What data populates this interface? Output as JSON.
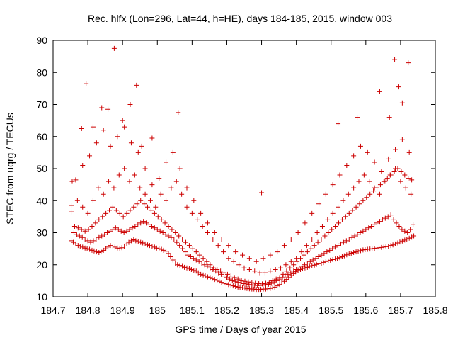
{
  "chart_data": {
    "type": "scatter",
    "title": "Rec. hlfx (Lon=296, Lat=44, h=HE), days 184-185, 2015, window 003",
    "xlabel": "GPS time / Days of year 2015",
    "ylabel": "STEC from uqrg / TECUs",
    "xlim": [
      184.7,
      185.8
    ],
    "ylim": [
      10,
      90
    ],
    "xticks": [
      184.7,
      184.8,
      184.9,
      185.0,
      185.1,
      185.2,
      185.3,
      185.4,
      185.5,
      185.6,
      185.7,
      185.8
    ],
    "xtick_labels": [
      "184.7",
      "184.8",
      "184.9",
      "185",
      "185.1",
      "185.2",
      "185.3",
      "185.4",
      "185.5",
      "185.6",
      "185.7",
      "185.8"
    ],
    "yticks": [
      10,
      20,
      30,
      40,
      50,
      60,
      70,
      80,
      90
    ],
    "ytick_labels": [
      "10",
      "20",
      "30",
      "40",
      "50",
      "60",
      "70",
      "80",
      "90"
    ],
    "grid": false,
    "marker": "+",
    "color": "#cc0000",
    "series": [
      {
        "x": [
          184.752,
          184.758,
          184.765,
          184.772,
          184.778,
          184.785,
          184.792,
          184.798,
          184.805,
          184.812,
          184.818,
          184.825,
          184.832,
          184.838,
          184.845,
          184.852,
          184.858,
          184.865,
          184.872,
          184.878,
          184.885,
          184.892,
          184.898,
          184.905,
          184.912,
          184.918,
          184.925,
          184.932,
          184.938,
          184.945,
          184.952,
          184.958,
          184.965,
          184.972,
          184.978,
          184.985,
          184.992,
          184.998,
          185.005,
          185.012,
          185.018,
          185.025,
          185.032,
          185.038,
          185.045,
          185.052,
          185.058,
          185.065,
          185.072,
          185.078,
          185.085,
          185.092,
          185.098,
          185.105,
          185.112,
          185.118,
          185.125,
          185.132,
          185.138,
          185.145,
          185.152,
          185.158,
          185.165,
          185.172,
          185.178,
          185.185,
          185.192,
          185.198,
          185.205,
          185.212,
          185.218,
          185.225,
          185.232,
          185.238,
          185.245,
          185.252,
          185.258,
          185.265,
          185.272,
          185.278,
          185.285,
          185.292,
          185.298,
          185.305,
          185.312,
          185.318,
          185.325,
          185.332,
          185.338,
          185.345,
          185.352,
          185.358,
          185.365,
          185.372,
          185.378,
          185.385,
          185.392,
          185.398,
          185.405,
          185.412,
          185.418,
          185.425,
          185.432,
          185.438,
          185.445,
          185.452,
          185.458,
          185.465,
          185.472,
          185.478,
          185.485,
          185.492,
          185.498,
          185.505,
          185.512,
          185.518,
          185.525,
          185.532,
          185.538,
          185.545,
          185.552,
          185.558,
          185.565,
          185.572,
          185.578,
          185.585,
          185.592,
          185.598,
          185.605,
          185.612,
          185.618,
          185.625,
          185.632,
          185.638,
          185.645,
          185.652,
          185.658,
          185.665,
          185.672,
          185.678,
          185.685,
          185.692,
          185.698,
          185.705,
          185.712,
          185.718,
          185.725,
          185.732,
          185.738
        ],
        "y": [
          27.5,
          27,
          26.5,
          26,
          25.8,
          25.5,
          25.2,
          25,
          24.8,
          24.5,
          24.3,
          24,
          23.8,
          24,
          24.5,
          25,
          25.5,
          26,
          25.8,
          25.5,
          25.2,
          25,
          25.3,
          25.8,
          26.5,
          27,
          27.5,
          27.8,
          27.5,
          27.2,
          27,
          26.8,
          26.5,
          26.2,
          26,
          25.8,
          25.5,
          25.2,
          25,
          24.8,
          24.5,
          24.2,
          23.5,
          22.5,
          21.5,
          20.5,
          20,
          19.8,
          19.5,
          19.2,
          19,
          18.8,
          18.5,
          18.2,
          18,
          17.5,
          17,
          16.8,
          16.5,
          16.2,
          16,
          15.7,
          15.4,
          15.1,
          14.8,
          14.5,
          14.2,
          14,
          13.8,
          13.6,
          13.4,
          13.2,
          13,
          12.9,
          12.8,
          12.7,
          12.6,
          12.5,
          12.4,
          12.4,
          12.3,
          12.3,
          12.3,
          12.4,
          12.4,
          12.5,
          12.6,
          12.8,
          13,
          13.4,
          13.8,
          14.3,
          14.8,
          15.4,
          16,
          16.6,
          17.2,
          17.8,
          18.2,
          18.5,
          18.8,
          19,
          19.2,
          19.5,
          19.7,
          19.9,
          20.1,
          20.3,
          20.5,
          20.7,
          21,
          21.2,
          21.4,
          21.6,
          21.8,
          22,
          22.2,
          22.5,
          22.8,
          23.1,
          23.4,
          23.6,
          23.8,
          24,
          24.2,
          24.4,
          24.6,
          24.7,
          24.8,
          24.9,
          25,
          25.1,
          25.2,
          25.3,
          25.4,
          25.5,
          25.6,
          25.8,
          26,
          26.2,
          26.5,
          26.8,
          27.1,
          27.4,
          27.7,
          28,
          28.3,
          28.6,
          29
        ]
      },
      {
        "x": [
          184.752,
          184.76,
          184.768,
          184.776,
          184.784,
          184.792,
          184.8,
          184.808,
          184.816,
          184.824,
          184.832,
          184.84,
          184.848,
          184.856,
          184.864,
          184.872,
          184.88,
          184.888,
          184.896,
          184.904,
          184.912,
          184.92,
          184.928,
          184.936,
          184.944,
          184.952,
          184.96,
          184.968,
          184.976,
          184.984,
          184.992,
          185.0,
          185.008,
          185.016,
          185.024,
          185.032,
          185.04,
          185.048,
          185.056,
          185.064,
          185.072,
          185.08,
          185.088,
          185.096,
          185.104,
          185.112,
          185.12,
          185.128,
          185.136,
          185.144,
          185.152,
          185.16,
          185.168,
          185.176,
          185.184,
          185.192,
          185.2,
          185.208,
          185.216,
          185.224,
          185.232,
          185.24,
          185.248,
          185.256,
          185.264,
          185.272,
          185.28,
          185.288,
          185.296,
          185.304,
          185.312,
          185.32,
          185.328,
          185.336,
          185.344,
          185.352,
          185.36,
          185.368,
          185.376,
          185.384,
          185.392,
          185.4,
          185.408,
          185.416,
          185.424,
          185.432,
          185.44,
          185.448,
          185.456,
          185.464,
          185.472,
          185.48,
          185.488,
          185.496,
          185.504,
          185.512,
          185.52,
          185.528,
          185.536,
          185.544,
          185.552,
          185.56,
          185.568,
          185.576,
          185.584,
          185.592,
          185.6,
          185.608,
          185.616,
          185.624,
          185.632,
          185.64,
          185.648,
          185.656,
          185.664,
          185.672,
          185.68,
          185.688,
          185.696,
          185.704,
          185.712,
          185.72,
          185.728,
          185.736
        ],
        "y": [
          36.5,
          30,
          29.5,
          29,
          28.5,
          28,
          27.5,
          27,
          27.5,
          28,
          28.5,
          29,
          29.5,
          30,
          30.5,
          31,
          31.5,
          31,
          30.5,
          30,
          30.5,
          31,
          31.5,
          32,
          32.5,
          33,
          33.5,
          33,
          32.5,
          32,
          31.5,
          31,
          30.5,
          30,
          29.5,
          29,
          28.5,
          28,
          27,
          26,
          25,
          24,
          23,
          22.5,
          22,
          21.5,
          21,
          20.5,
          20,
          19.5,
          19,
          18.5,
          18,
          17.5,
          17,
          16.5,
          16,
          15.5,
          15,
          14.8,
          14.5,
          14.3,
          14.1,
          14,
          13.8,
          13.7,
          13.6,
          13.5,
          13.5,
          13.6,
          13.7,
          13.9,
          14.2,
          14.6,
          15,
          15.5,
          16,
          16.5,
          17,
          17.5,
          18,
          18.5,
          19,
          19.5,
          20,
          20.5,
          21,
          21.5,
          22,
          22.5,
          23,
          23.5,
          24,
          24.5,
          25,
          25.5,
          26,
          26.5,
          27,
          27.5,
          28,
          28.5,
          29,
          29.5,
          30,
          30.5,
          31,
          31.5,
          32,
          32.5,
          33,
          33.5,
          34,
          34.5,
          35,
          35.5,
          34,
          33,
          32,
          31,
          30.5,
          30,
          31,
          32.5
        ]
      },
      {
        "x": [
          184.752,
          184.762,
          184.772,
          184.782,
          184.792,
          184.802,
          184.812,
          184.822,
          184.832,
          184.842,
          184.852,
          184.862,
          184.872,
          184.882,
          184.892,
          184.902,
          184.912,
          184.922,
          184.932,
          184.942,
          184.952,
          184.962,
          184.972,
          184.982,
          184.992,
          185.002,
          185.012,
          185.022,
          185.032,
          185.042,
          185.052,
          185.062,
          185.072,
          185.082,
          185.092,
          185.102,
          185.112,
          185.122,
          185.132,
          185.142,
          185.152,
          185.162,
          185.172,
          185.182,
          185.192,
          185.202,
          185.212,
          185.222,
          185.232,
          185.242,
          185.252,
          185.262,
          185.272,
          185.282,
          185.292,
          185.302,
          185.312,
          185.322,
          185.332,
          185.342,
          185.352,
          185.362,
          185.372,
          185.382,
          185.392,
          185.402,
          185.412,
          185.422,
          185.432,
          185.442,
          185.452,
          185.462,
          185.472,
          185.482,
          185.492,
          185.502,
          185.512,
          185.522,
          185.532,
          185.542,
          185.552,
          185.562,
          185.572,
          185.582,
          185.592,
          185.602,
          185.612,
          185.622,
          185.632,
          185.642,
          185.652,
          185.662,
          185.672,
          185.682,
          185.692,
          185.702,
          185.712,
          185.722,
          185.732
        ],
        "y": [
          38.5,
          32,
          31.5,
          31,
          30.5,
          31,
          32,
          33,
          34,
          35,
          36,
          37,
          38,
          37,
          36,
          35,
          36,
          37,
          38,
          39,
          40,
          39,
          38,
          37,
          36,
          35,
          34,
          33,
          32,
          31,
          30,
          29,
          28,
          27,
          26,
          25,
          24,
          23,
          22,
          21,
          20,
          19,
          18.5,
          18,
          17.5,
          17,
          16.5,
          16,
          15.5,
          15,
          14.8,
          14.6,
          14.4,
          14.2,
          14.1,
          14,
          14.2,
          14.5,
          15,
          15.5,
          16,
          17,
          18,
          19,
          20,
          21,
          22,
          23,
          24,
          25,
          26,
          27,
          28,
          29,
          30,
          31,
          32,
          33,
          34,
          35,
          36,
          37,
          38,
          39,
          40,
          41,
          42,
          43,
          44,
          45,
          46,
          47,
          48,
          49,
          50,
          49,
          48,
          47,
          46.5
        ]
      },
      {
        "x": [
          184.755,
          184.77,
          184.785,
          184.8,
          184.815,
          184.83,
          184.845,
          184.86,
          184.875,
          184.89,
          184.905,
          184.92,
          184.935,
          184.95,
          184.965,
          184.98,
          184.995,
          185.01,
          185.025,
          185.04,
          185.055,
          185.07,
          185.085,
          185.1,
          185.115,
          185.13,
          185.145,
          185.16,
          185.175,
          185.19,
          185.205,
          185.22,
          185.235,
          185.25,
          185.265,
          185.28,
          185.295,
          185.31,
          185.325,
          185.34,
          185.355,
          185.37,
          185.385,
          185.4,
          185.415,
          185.43,
          185.445,
          185.46,
          185.475,
          185.49,
          185.505,
          185.52,
          185.535,
          185.55,
          185.565,
          185.58,
          185.595,
          185.61,
          185.625,
          185.64,
          185.655,
          185.67,
          185.685,
          185.7,
          185.715,
          185.73
        ],
        "y": [
          46,
          40,
          38,
          36,
          40,
          44,
          42,
          46,
          44,
          48,
          50,
          46,
          48,
          44,
          42,
          40,
          38,
          42,
          40,
          44,
          46,
          42,
          38,
          36,
          34,
          32,
          30,
          28,
          26,
          24,
          22,
          21,
          20,
          19,
          18.5,
          18,
          17.5,
          17.5,
          18,
          18.5,
          19,
          20,
          21,
          22,
          24,
          26,
          28,
          30,
          32,
          34,
          36,
          38,
          40,
          42,
          44,
          46,
          48,
          46,
          44,
          42,
          46,
          48,
          50,
          46,
          44,
          42
        ]
      },
      {
        "x": [
          184.765,
          184.785,
          184.805,
          184.825,
          184.845,
          184.865,
          184.885,
          184.905,
          184.925,
          184.945,
          184.965,
          184.985,
          185.005,
          185.025,
          185.045,
          185.065,
          185.085,
          185.105,
          185.125,
          185.145,
          185.165,
          185.185,
          185.205,
          185.225,
          185.245,
          185.265,
          185.285,
          185.305,
          185.325,
          185.345,
          185.365,
          185.385,
          185.405,
          185.425,
          185.445,
          185.465,
          185.485,
          185.505,
          185.525,
          185.545,
          185.565,
          185.585,
          185.605,
          185.625,
          185.645,
          185.665,
          185.685,
          185.705,
          185.725
        ],
        "y": [
          46.5,
          51,
          54,
          58,
          62,
          57,
          60,
          63,
          58,
          55,
          50,
          45,
          47,
          52,
          55,
          50,
          44,
          40,
          36,
          33,
          30,
          28,
          26,
          24,
          23,
          22,
          21,
          22,
          23,
          24,
          26,
          28,
          30,
          33,
          36,
          39,
          42,
          45,
          48,
          51,
          54,
          57,
          55,
          52,
          49,
          53,
          56,
          59,
          55
        ]
      },
      {
        "x": [
          184.782,
          184.795,
          184.815,
          184.84,
          184.858,
          184.876,
          184.9,
          184.922,
          184.94,
          184.955,
          184.985,
          185.06,
          185.3,
          185.52,
          185.575,
          185.64,
          185.668,
          185.683,
          185.695,
          185.705,
          185.722
        ],
        "y": [
          62.5,
          76.5,
          63,
          69,
          68.5,
          87.5,
          65,
          70,
          76,
          57,
          59.5,
          67.5,
          42.5,
          64,
          66,
          74,
          66,
          84,
          75.5,
          70.5,
          83
        ]
      }
    ]
  }
}
